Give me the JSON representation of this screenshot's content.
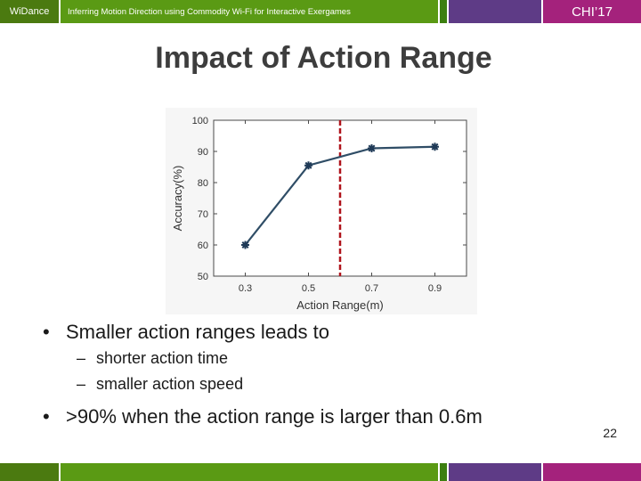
{
  "header": {
    "brand": "WiDance",
    "paper_title": "Inferring Motion Direction using Commodity Wi-Fi for Interactive Exergames",
    "venue": "CHI’17"
  },
  "slide": {
    "title": "Impact of Action Range",
    "page_number": "22"
  },
  "bullets": [
    {
      "text": "Smaller action ranges leads to",
      "sub": [
        "shorter action time",
        "smaller action speed"
      ]
    },
    {
      "text": ">90% when the action range is larger than 0.6m"
    }
  ],
  "symbols": {
    "bullet": "•",
    "dash": "–"
  },
  "colors": {
    "line": "#2f4d66",
    "marker": "#1f3a57",
    "threshold": "#b0141c",
    "brand": "#4b7a10",
    "title_bar": "#5a9a14",
    "purple": "#5e3b86",
    "magenta": "#a4227c"
  },
  "chart_data": {
    "type": "line",
    "x": [
      0.3,
      0.5,
      0.7,
      0.9
    ],
    "x_tick_labels": [
      "0.3",
      "0.5",
      "0.7",
      "0.9"
    ],
    "series": [
      {
        "values": [
          60,
          85.5,
          91,
          91.5
        ],
        "marker": "asterisk"
      }
    ],
    "xlabel": "Action Range(m)",
    "ylabel": "Accuracy(%)",
    "xlim": [
      0.2,
      1.0
    ],
    "ylim": [
      50,
      100
    ],
    "y_ticks": [
      50,
      60,
      70,
      80,
      90,
      100
    ],
    "threshold_x": 0.6,
    "grid": false
  }
}
